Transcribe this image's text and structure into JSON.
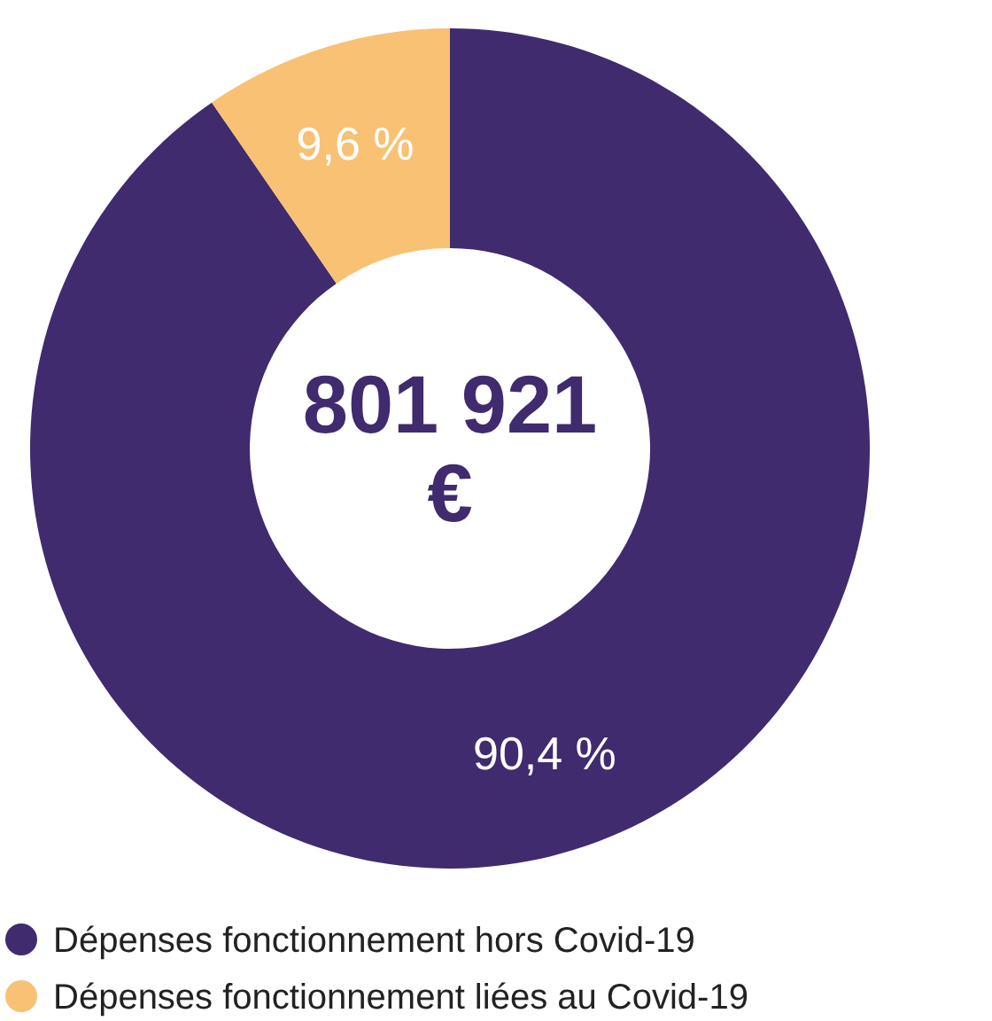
{
  "chart_data": {
    "type": "donut",
    "categories": [
      "Dépenses fonctionnement hors Covid-19",
      "Dépenses fonctionnement liées au Covid-19"
    ],
    "values": [
      90.4,
      9.6
    ],
    "colors": [
      "#3f2b6e",
      "#f8c173"
    ],
    "value_labels": [
      "90,4 %",
      "9,6 %"
    ],
    "annotations": [
      "801 921 €"
    ],
    "legend": "bottom left"
  }
}
